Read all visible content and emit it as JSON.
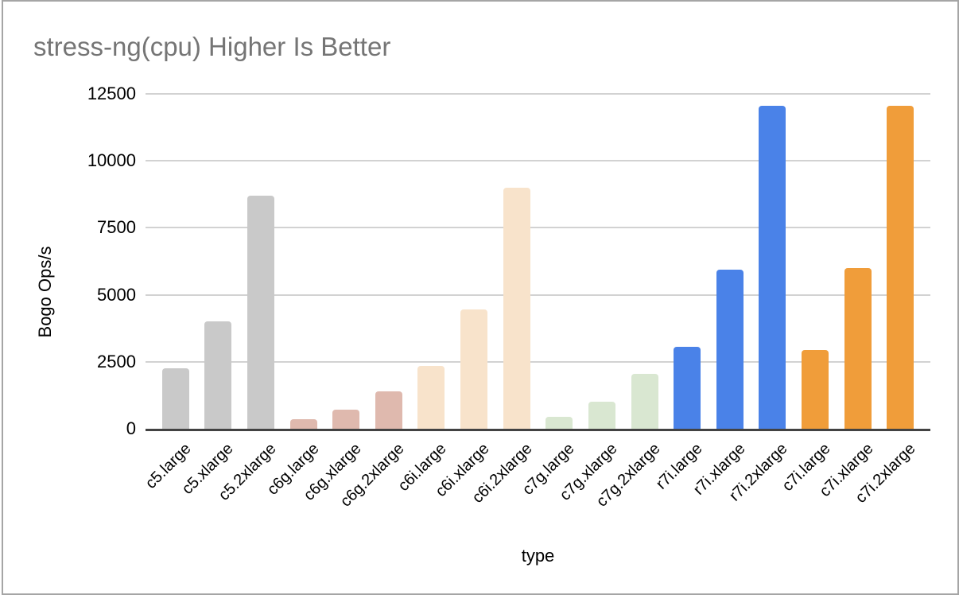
{
  "chart_data": {
    "type": "bar",
    "title": "stress-ng(cpu) Higher Is Better",
    "xlabel": "type",
    "ylabel": "Bogo Ops/s",
    "ylim": [
      0,
      12500
    ],
    "yticks": [
      0,
      2500,
      5000,
      7500,
      10000,
      12500
    ],
    "grid": "horizontal",
    "legend": "none",
    "categories": [
      "c5.large",
      "c5.xlarge",
      "c5.2xlarge",
      "c6g.large",
      "c6g.xlarge",
      "c6g.2xlarge",
      "c6i.large",
      "c6i.xlarge",
      "c6i.2xlarge",
      "c7g.large",
      "c7g.xlarge",
      "c7g.2xlarge",
      "r7i.large",
      "r7i.xlarge",
      "r7i.2xlarge",
      "c7i.large",
      "c7i.xlarge",
      "c7i.2xlarge"
    ],
    "values": [
      2250,
      4000,
      8700,
      350,
      700,
      1400,
      2350,
      4450,
      9000,
      450,
      1000,
      2050,
      3050,
      5950,
      12050,
      2950,
      6000,
      12050
    ],
    "bar_colors": [
      "#c9c9c9",
      "#c9c9c9",
      "#c9c9c9",
      "#dfb9ae",
      "#dfb9ae",
      "#dfb9ae",
      "#f8e3cb",
      "#f8e3cb",
      "#f8e3cb",
      "#d9e7d1",
      "#d9e7d1",
      "#d9e7d1",
      "#4a82e8",
      "#4a82e8",
      "#4a82e8",
      "#f09d3a",
      "#f09d3a",
      "#f09d3a"
    ],
    "series_groups": [
      {
        "prefix": "c5",
        "color": "#c9c9c9"
      },
      {
        "prefix": "c6g",
        "color": "#dfb9ae"
      },
      {
        "prefix": "c6i",
        "color": "#f8e3cb"
      },
      {
        "prefix": "c7g",
        "color": "#d9e7d1"
      },
      {
        "prefix": "r7i",
        "color": "#4a82e8"
      },
      {
        "prefix": "c7i",
        "color": "#f09d3a"
      }
    ]
  },
  "colors": {
    "title_text": "#757575",
    "gridline": "#d2d2d2",
    "axis_line": "#424242",
    "frame_border": "#a5a5a5",
    "tick_text": "#000000"
  }
}
